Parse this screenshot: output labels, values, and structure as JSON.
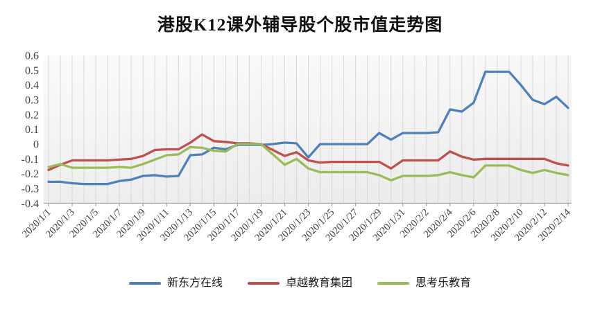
{
  "title": "港股K12课外辅导股个股市值走势图",
  "chart_data": {
    "type": "line",
    "title": "港股K12课外辅导股个股市值走势图",
    "xlabel": "",
    "ylabel": "",
    "ylim": [
      -0.4,
      0.6
    ],
    "ytick_labels": [
      "0.6",
      "0.5",
      "0.4",
      "0.3",
      "0.2",
      "0.1",
      "0",
      "-0.1",
      "-0.2",
      "-0.3",
      "-0.4"
    ],
    "x_tick_labels": [
      "2020/1/1",
      "2020/1/3",
      "2020/1/5",
      "2020/1/7",
      "2020/1/9",
      "2020/1/11",
      "2020/1/13",
      "2020/1/15",
      "2020/1/17",
      "2020/1/19",
      "2020/1/21",
      "2020/1/23",
      "2020/1/25",
      "2020/1/27",
      "2020/1/29",
      "2020/1/31",
      "2020/2/2",
      "2020/2/4",
      "2020/2/6",
      "2020/2/8",
      "2020/2/10",
      "2020/2/12",
      "2020/2/14"
    ],
    "x_tick_every": 2,
    "grid": "vertical gridline per day, no horizontal gridlines",
    "legend_position": "bottom",
    "plot_bg_top_color": "#fbfbfb",
    "plot_bg_bottom_color": "#ededed",
    "gridline_color": "#d8d8d8",
    "axis_line_color": "#a6a6a6",
    "axis_text_color": "#3f3f3f",
    "x": [
      "2020/1/1",
      "2020/1/2",
      "2020/1/3",
      "2020/1/4",
      "2020/1/5",
      "2020/1/6",
      "2020/1/7",
      "2020/1/8",
      "2020/1/9",
      "2020/1/10",
      "2020/1/11",
      "2020/1/12",
      "2020/1/13",
      "2020/1/14",
      "2020/1/15",
      "2020/1/16",
      "2020/1/17",
      "2020/1/18",
      "2020/1/19",
      "2020/1/20",
      "2020/1/21",
      "2020/1/22",
      "2020/1/23",
      "2020/1/24",
      "2020/1/25",
      "2020/1/26",
      "2020/1/27",
      "2020/1/28",
      "2020/1/29",
      "2020/1/30",
      "2020/1/31",
      "2020/2/1",
      "2020/2/2",
      "2020/2/3",
      "2020/2/4",
      "2020/2/5",
      "2020/2/6",
      "2020/2/7",
      "2020/2/8",
      "2020/2/9",
      "2020/2/10",
      "2020/2/11",
      "2020/2/12",
      "2020/2/13",
      "2020/2/14"
    ],
    "series": [
      {
        "name": "新东方在线",
        "color": "#4e80bc",
        "values": [
          -0.255,
          -0.255,
          -0.265,
          -0.27,
          -0.27,
          -0.27,
          -0.25,
          -0.24,
          -0.215,
          -0.21,
          -0.22,
          -0.215,
          -0.075,
          -0.07,
          -0.025,
          -0.035,
          -0.005,
          -0.005,
          -0.005,
          0,
          0.01,
          0.005,
          -0.09,
          0,
          0,
          0,
          0,
          0,
          0.075,
          0.03,
          0.075,
          0.075,
          0.075,
          0.08,
          0.235,
          0.22,
          0.28,
          0.49,
          0.49,
          0.49,
          0.4,
          0.3,
          0.27,
          0.32,
          0.245
        ]
      },
      {
        "name": "卓越教育集团",
        "color": "#c0504d",
        "values": [
          -0.175,
          -0.14,
          -0.11,
          -0.11,
          -0.11,
          -0.11,
          -0.105,
          -0.1,
          -0.08,
          -0.04,
          -0.035,
          -0.035,
          0.01,
          0.065,
          0.02,
          0.015,
          0.005,
          0.005,
          0,
          -0.04,
          -0.08,
          -0.055,
          -0.11,
          -0.125,
          -0.12,
          -0.12,
          -0.12,
          -0.12,
          -0.12,
          -0.165,
          -0.11,
          -0.11,
          -0.11,
          -0.11,
          -0.05,
          -0.085,
          -0.105,
          -0.1,
          -0.1,
          -0.1,
          -0.1,
          -0.1,
          -0.1,
          -0.13,
          -0.145
        ]
      },
      {
        "name": "思考乐教育",
        "color": "#9bbb59",
        "values": [
          -0.155,
          -0.135,
          -0.16,
          -0.16,
          -0.16,
          -0.16,
          -0.155,
          -0.16,
          -0.135,
          -0.105,
          -0.075,
          -0.07,
          -0.02,
          -0.025,
          -0.045,
          -0.05,
          0,
          0,
          0,
          -0.07,
          -0.14,
          -0.1,
          -0.165,
          -0.19,
          -0.19,
          -0.19,
          -0.19,
          -0.19,
          -0.21,
          -0.245,
          -0.215,
          -0.215,
          -0.215,
          -0.21,
          -0.19,
          -0.21,
          -0.225,
          -0.145,
          -0.145,
          -0.145,
          -0.175,
          -0.195,
          -0.175,
          -0.195,
          -0.21
        ]
      }
    ]
  }
}
